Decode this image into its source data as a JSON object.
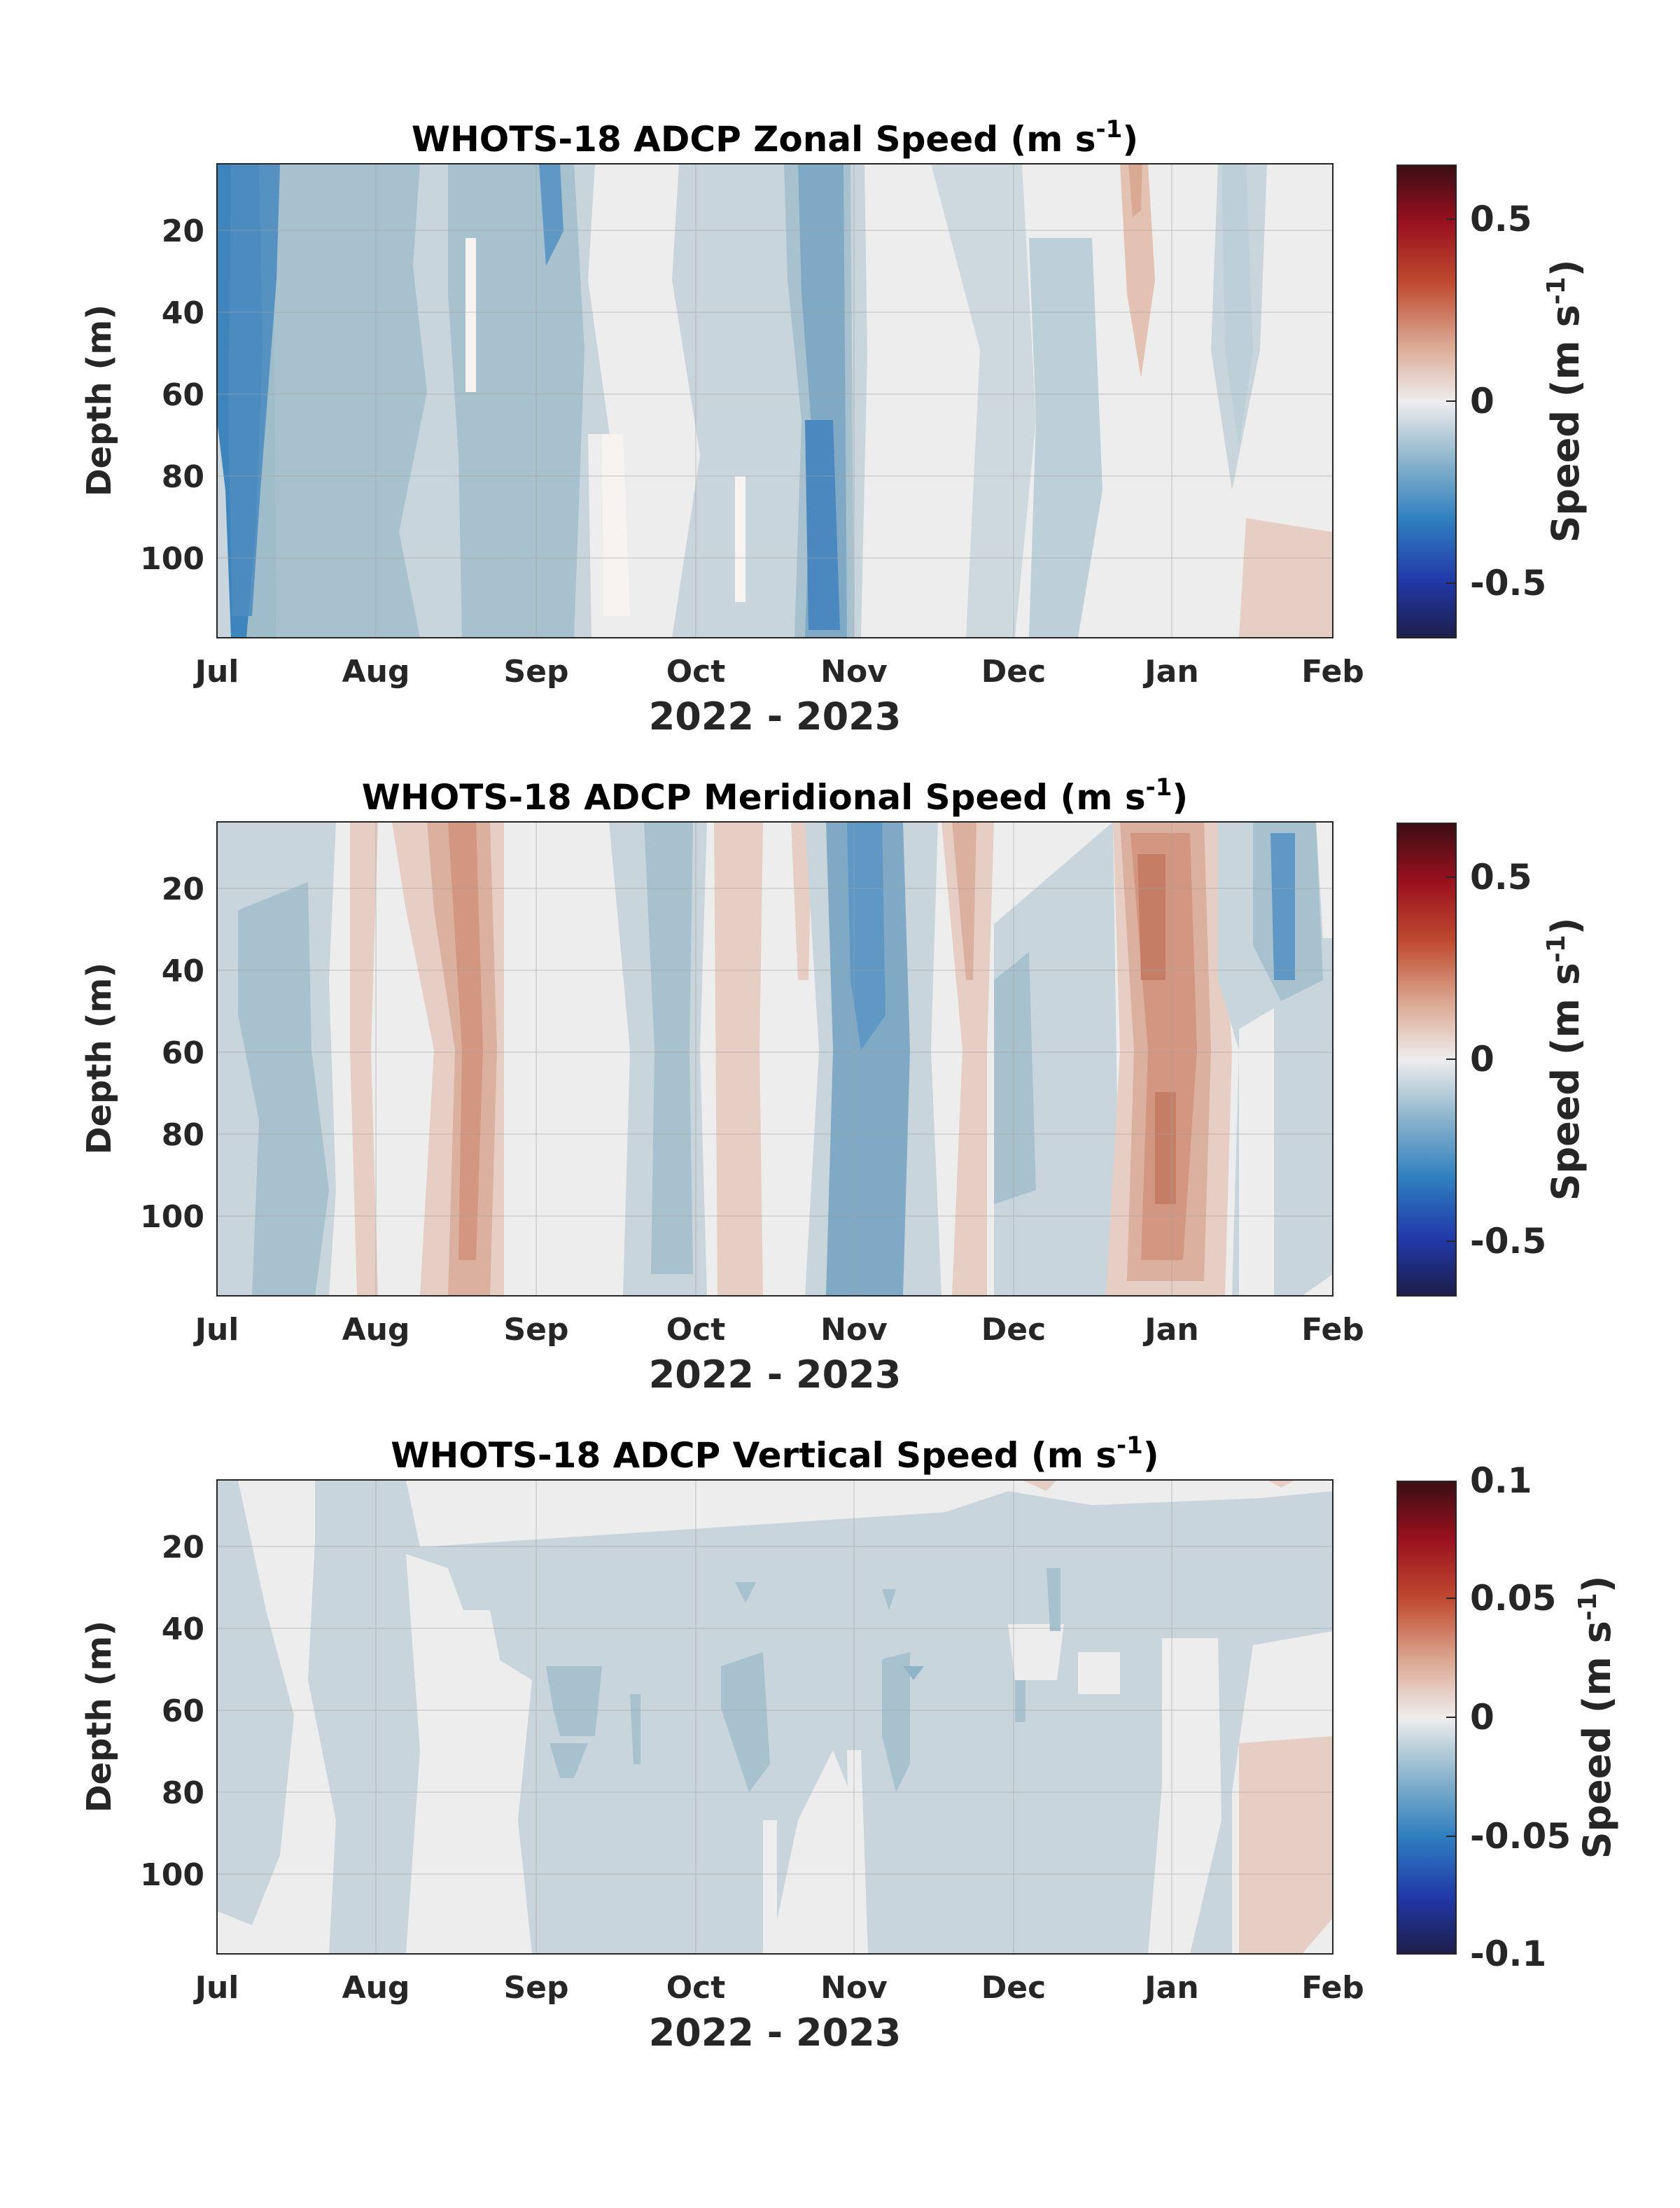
{
  "figure": {
    "panels": [
      {
        "title": "WHOTS-18 ADCP Zonal Speed (m s",
        "title_sup": "-1",
        "title_close": ")",
        "ylabel": "Depth (m)",
        "xlabel": "2022 - 2023",
        "colorbar_label": "Speed (m s",
        "colorbar_sup": "-1",
        "colorbar_close": ")",
        "colorbar_ticks": [
          "0.5",
          "0",
          "-0.5"
        ],
        "y_ticks": [
          "20",
          "40",
          "60",
          "80",
          "100"
        ],
        "x_ticks": [
          "Jul",
          "Aug",
          "Sep",
          "Oct",
          "Nov",
          "Dec",
          "Jan",
          "Feb"
        ]
      },
      {
        "title": "WHOTS-18 ADCP Meridional Speed (m s",
        "title_sup": "-1",
        "title_close": ")",
        "ylabel": "Depth (m)",
        "xlabel": "2022 - 2023",
        "colorbar_label": "Speed (m s",
        "colorbar_sup": "-1",
        "colorbar_close": ")",
        "colorbar_ticks": [
          "0.5",
          "0",
          "-0.5"
        ],
        "y_ticks": [
          "20",
          "40",
          "60",
          "80",
          "100"
        ],
        "x_ticks": [
          "Jul",
          "Aug",
          "Sep",
          "Oct",
          "Nov",
          "Dec",
          "Jan",
          "Feb"
        ]
      },
      {
        "title": "WHOTS-18 ADCP Vertical Speed (m s",
        "title_sup": "-1",
        "title_close": ")",
        "ylabel": "Depth (m)",
        "xlabel": "2022 - 2023",
        "colorbar_label": "Speed (m s",
        "colorbar_sup": "-1",
        "colorbar_close": ")",
        "colorbar_ticks": [
          "0.1",
          "0.05",
          "0",
          "-0.05",
          "-0.1"
        ],
        "y_ticks": [
          "20",
          "40",
          "60",
          "80",
          "100"
        ],
        "x_ticks": [
          "Jul",
          "Aug",
          "Sep",
          "Oct",
          "Nov",
          "Dec",
          "Jan",
          "Feb"
        ]
      }
    ]
  },
  "chart_data": [
    {
      "type": "heatmap",
      "title": "WHOTS-18 ADCP Zonal Speed (m s-1)",
      "xlabel": "2022 - 2023",
      "ylabel": "Depth (m)",
      "colorbar_label": "Speed (m s-1)",
      "xlim": [
        "2022-07-01",
        "2023-02-01"
      ],
      "ylim": [
        120,
        4
      ],
      "y_reversed": true,
      "clim": [
        -0.65,
        0.65
      ],
      "grid": true,
      "colormap": "diverging blue-white-red",
      "x": [
        "2022-07-01",
        "2022-07-15",
        "2022-08-01",
        "2022-08-15",
        "2022-09-01",
        "2022-09-15",
        "2022-10-01",
        "2022-10-15",
        "2022-11-01",
        "2022-11-15",
        "2022-12-01",
        "2022-12-15",
        "2023-01-01",
        "2023-01-15",
        "2023-02-01"
      ],
      "y": [
        10,
        30,
        50,
        70,
        90,
        110
      ],
      "z": [
        [
          -0.3,
          -0.2,
          -0.22,
          -0.18,
          -0.22,
          -0.28,
          -0.12,
          -0.1,
          -0.2,
          -0.03,
          -0.1,
          0.04,
          -0.03,
          -0.1,
          -0.02
        ],
        [
          -0.34,
          -0.2,
          -0.22,
          -0.18,
          -0.1,
          -0.22,
          -0.12,
          -0.18,
          -0.25,
          -0.03,
          -0.13,
          0.12,
          -0.03,
          -0.1,
          -0.02
        ],
        [
          -0.36,
          -0.22,
          -0.22,
          -0.2,
          -0.05,
          -0.2,
          -0.12,
          -0.18,
          -0.25,
          -0.02,
          -0.14,
          0.08,
          -0.04,
          -0.12,
          -0.02
        ],
        [
          -0.38,
          -0.22,
          -0.22,
          -0.2,
          -0.05,
          -0.2,
          -0.12,
          -0.2,
          -0.3,
          -0.02,
          -0.14,
          -0.05,
          -0.04,
          -0.05,
          -0.03
        ],
        [
          -0.35,
          -0.25,
          -0.22,
          -0.18,
          0.0,
          -0.22,
          -0.12,
          -0.2,
          -0.32,
          -0.02,
          -0.16,
          -0.05,
          -0.04,
          -0.02,
          0.05
        ],
        [
          -0.3,
          -0.25,
          -0.24,
          -0.15,
          0.02,
          -0.2,
          -0.14,
          -0.2,
          -0.3,
          -0.02,
          -0.16,
          -0.05,
          -0.02,
          0.0,
          0.06
        ]
      ]
    },
    {
      "type": "heatmap",
      "title": "WHOTS-18 ADCP Meridional Speed (m s-1)",
      "xlabel": "2022 - 2023",
      "ylabel": "Depth (m)",
      "colorbar_label": "Speed (m s-1)",
      "xlim": [
        "2022-07-01",
        "2023-02-01"
      ],
      "ylim": [
        120,
        4
      ],
      "y_reversed": true,
      "clim": [
        -0.65,
        0.65
      ],
      "grid": true,
      "colormap": "diverging blue-white-red",
      "x": [
        "2022-07-01",
        "2022-07-15",
        "2022-08-01",
        "2022-08-15",
        "2022-09-01",
        "2022-09-15",
        "2022-10-01",
        "2022-10-15",
        "2022-11-01",
        "2022-11-15",
        "2022-12-01",
        "2022-12-15",
        "2023-01-01",
        "2023-01-15",
        "2023-02-01"
      ],
      "y": [
        10,
        30,
        50,
        70,
        90,
        110
      ],
      "z": [
        [
          -0.05,
          -0.1,
          0.02,
          0.15,
          0.0,
          -0.08,
          0.1,
          -0.25,
          0.12,
          -0.08,
          -0.1,
          0.28,
          -0.05,
          -0.25,
          0.05
        ],
        [
          -0.1,
          -0.18,
          0.02,
          0.2,
          0.0,
          -0.08,
          0.1,
          -0.28,
          0.12,
          -0.08,
          -0.1,
          0.28,
          -0.05,
          -0.32,
          0.0
        ],
        [
          -0.1,
          -0.18,
          0.02,
          0.2,
          -0.02,
          -0.1,
          0.08,
          -0.28,
          0.12,
          -0.12,
          -0.1,
          0.26,
          -0.08,
          -0.2,
          -0.1
        ],
        [
          -0.1,
          -0.16,
          0.02,
          0.22,
          -0.02,
          -0.1,
          0.08,
          -0.28,
          0.1,
          -0.12,
          -0.06,
          0.3,
          -0.08,
          -0.12,
          -0.1
        ],
        [
          -0.1,
          -0.16,
          0.02,
          0.2,
          0.0,
          -0.12,
          0.06,
          -0.26,
          0.1,
          -0.14,
          -0.05,
          0.3,
          -0.08,
          -0.12,
          -0.12
        ],
        [
          -0.08,
          -0.15,
          0.0,
          0.15,
          0.0,
          -0.12,
          0.05,
          -0.24,
          0.1,
          -0.12,
          -0.05,
          0.25,
          -0.08,
          -0.1,
          -0.12
        ]
      ]
    },
    {
      "type": "heatmap",
      "title": "WHOTS-18 ADCP Vertical Speed (m s-1)",
      "xlabel": "2022 - 2023",
      "ylabel": "Depth (m)",
      "colorbar_label": "Speed (m s-1)",
      "xlim": [
        "2022-07-01",
        "2023-02-01"
      ],
      "ylim": [
        120,
        4
      ],
      "y_reversed": true,
      "clim": [
        -0.1,
        0.1
      ],
      "grid": true,
      "colormap": "diverging blue-white-red",
      "x": [
        "2022-07-01",
        "2022-07-15",
        "2022-08-01",
        "2022-08-15",
        "2022-09-01",
        "2022-09-15",
        "2022-10-01",
        "2022-10-15",
        "2022-11-01",
        "2022-11-15",
        "2022-12-01",
        "2022-12-15",
        "2023-01-01",
        "2023-01-15",
        "2023-02-01"
      ],
      "y": [
        10,
        30,
        50,
        70,
        90,
        110
      ],
      "z": [
        [
          0.0,
          0.0,
          -0.01,
          0.0,
          0.0,
          -0.01,
          0.0,
          -0.01,
          -0.01,
          -0.01,
          0.0,
          -0.01,
          0.0,
          -0.01,
          -0.01
        ],
        [
          -0.01,
          0.0,
          -0.01,
          0.0,
          -0.01,
          -0.01,
          -0.01,
          -0.015,
          -0.01,
          -0.015,
          -0.01,
          -0.01,
          -0.01,
          -0.01,
          -0.01
        ],
        [
          -0.01,
          -0.01,
          -0.01,
          0.0,
          -0.01,
          -0.02,
          -0.01,
          -0.02,
          -0.01,
          -0.025,
          -0.01,
          -0.01,
          -0.01,
          -0.01,
          0.0
        ],
        [
          -0.01,
          -0.01,
          -0.01,
          0.0,
          -0.01,
          -0.02,
          -0.01,
          -0.02,
          -0.01,
          -0.02,
          -0.01,
          -0.01,
          0.0,
          0.01,
          0.01
        ],
        [
          -0.01,
          -0.01,
          -0.01,
          0.0,
          -0.01,
          -0.01,
          -0.01,
          -0.015,
          0.0,
          -0.01,
          -0.01,
          -0.01,
          -0.01,
          0.01,
          0.01
        ],
        [
          -0.01,
          0.0,
          -0.01,
          0.0,
          -0.01,
          -0.01,
          -0.01,
          0.0,
          0.0,
          -0.01,
          -0.01,
          -0.01,
          -0.01,
          0.01,
          0.01
        ]
      ]
    }
  ]
}
